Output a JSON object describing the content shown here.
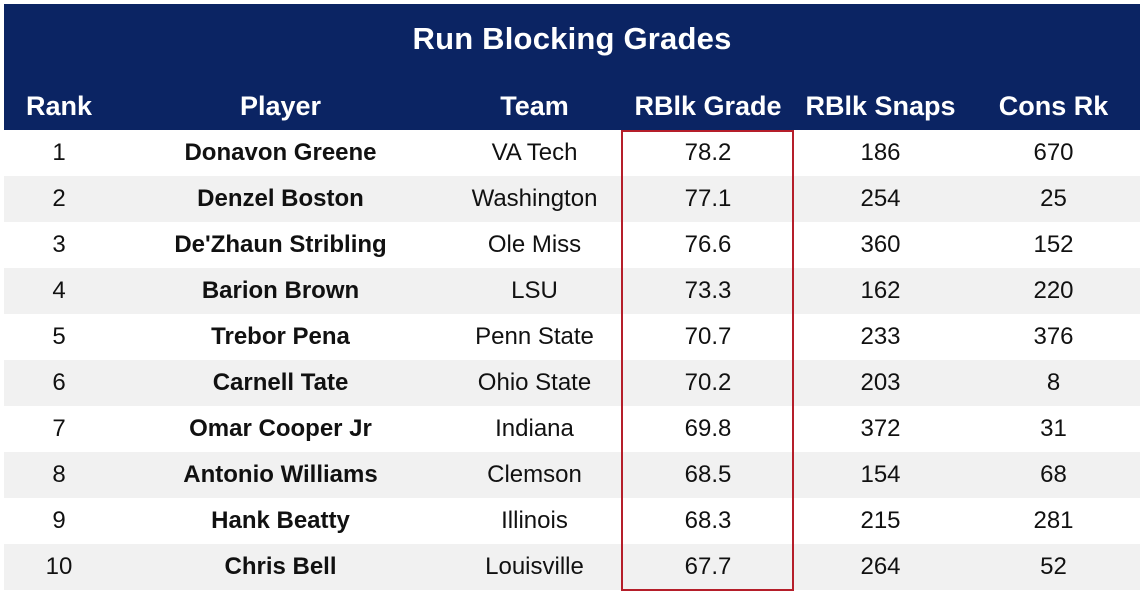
{
  "chart_data": {
    "type": "table",
    "title": "Run Blocking Grades",
    "columns": [
      "Rank",
      "Player",
      "Team",
      "RBlk Grade",
      "RBlk Snaps",
      "Cons Rk"
    ],
    "rows": [
      {
        "rank": "1",
        "player": "Donavon Greene",
        "team": "VA Tech",
        "grade": "78.2",
        "snaps": "186",
        "cons_rk": "670"
      },
      {
        "rank": "2",
        "player": "Denzel Boston",
        "team": "Washington",
        "grade": "77.1",
        "snaps": "254",
        "cons_rk": "25"
      },
      {
        "rank": "3",
        "player": "De'Zhaun Stribling",
        "team": "Ole Miss",
        "grade": "76.6",
        "snaps": "360",
        "cons_rk": "152"
      },
      {
        "rank": "4",
        "player": "Barion Brown",
        "team": "LSU",
        "grade": "73.3",
        "snaps": "162",
        "cons_rk": "220"
      },
      {
        "rank": "5",
        "player": "Trebor Pena",
        "team": "Penn State",
        "grade": "70.7",
        "snaps": "233",
        "cons_rk": "376"
      },
      {
        "rank": "6",
        "player": "Carnell Tate",
        "team": "Ohio State",
        "grade": "70.2",
        "snaps": "203",
        "cons_rk": "8"
      },
      {
        "rank": "7",
        "player": "Omar Cooper Jr",
        "team": "Indiana",
        "grade": "69.8",
        "snaps": "372",
        "cons_rk": "31"
      },
      {
        "rank": "8",
        "player": "Antonio Williams",
        "team": "Clemson",
        "grade": "68.5",
        "snaps": "154",
        "cons_rk": "68"
      },
      {
        "rank": "9",
        "player": "Hank Beatty",
        "team": "Illinois",
        "grade": "68.3",
        "snaps": "215",
        "cons_rk": "281"
      },
      {
        "rank": "10",
        "player": "Chris Bell",
        "team": "Louisville",
        "grade": "67.7",
        "snaps": "264",
        "cons_rk": "52"
      }
    ],
    "highlighted_column": "RBlk Grade"
  },
  "colors": {
    "header_bg": "#0b2463",
    "header_text": "#ffffff",
    "row_alt_bg": "#f1f1f1",
    "highlight_border": "#b51e2a"
  }
}
